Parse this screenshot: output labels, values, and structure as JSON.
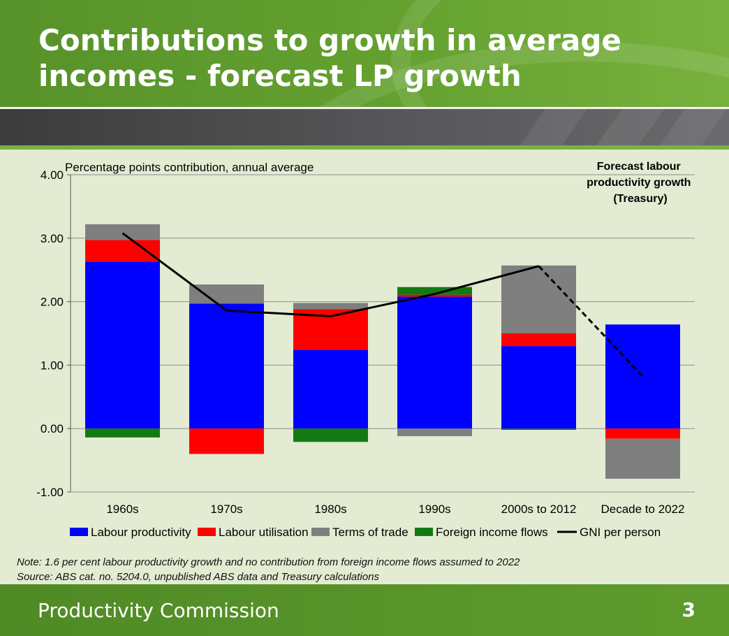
{
  "slide": {
    "title": "Contributions to growth in average\nincomes - forecast LP growth",
    "note": "Note: 1.6 per cent labour productivity growth and no contribution from foreign income flows assumed to 2022",
    "source": "Source: ABS cat. no. 5204.0, unpublished ABS data and Treasury calculations",
    "organisation": "Productivity Commission",
    "page_number": "3",
    "colors": {
      "header_green": "#5e9a2c",
      "footer_green": "#5a9629",
      "band_grey": "#4d4d4f",
      "plot_bg": "#e3ecd2"
    }
  },
  "chart_data": {
    "type": "bar",
    "stacked": true,
    "subtitle": "Percentage points contribution, annual average",
    "annotation": [
      "Forecast labour",
      "productivity growth",
      "(Treasury)"
    ],
    "categories": [
      "1960s",
      "1970s",
      "1980s",
      "1990s",
      "2000s to 2012",
      "Decade to 2022"
    ],
    "ylim": [
      -1.0,
      4.0
    ],
    "yticks": [
      4.0,
      3.0,
      2.0,
      1.0,
      0.0,
      -1.0
    ],
    "ytick_labels": [
      "4.00",
      "3.00",
      "2.00",
      "1.00",
      "0.00",
      "-1.00"
    ],
    "grid": true,
    "legend_position": "bottom",
    "series": [
      {
        "name": "Labour productivity",
        "kind": "bar",
        "color": "#0000ff",
        "values": [
          2.63,
          1.97,
          1.24,
          2.08,
          1.3,
          1.64
        ]
      },
      {
        "name": "Labour utilisation",
        "kind": "bar",
        "color": "#ff0000",
        "values": [
          0.34,
          -0.4,
          0.64,
          0.03,
          0.2,
          -0.16
        ]
      },
      {
        "name": "Terms of trade",
        "kind": "bar",
        "color": "#7f7f7f",
        "values": [
          0.25,
          0.3,
          0.1,
          -0.12,
          1.07,
          -0.63
        ]
      },
      {
        "name": "Foreign income flows",
        "kind": "bar",
        "color": "#137a13",
        "values": [
          -0.14,
          0.0,
          -0.21,
          0.12,
          -0.02,
          0.0
        ]
      },
      {
        "name": "GNI per person",
        "kind": "line",
        "color": "#000000",
        "values": [
          3.08,
          1.86,
          1.77,
          2.12,
          2.56,
          0.82
        ],
        "dashed_last_segment": true
      }
    ]
  }
}
